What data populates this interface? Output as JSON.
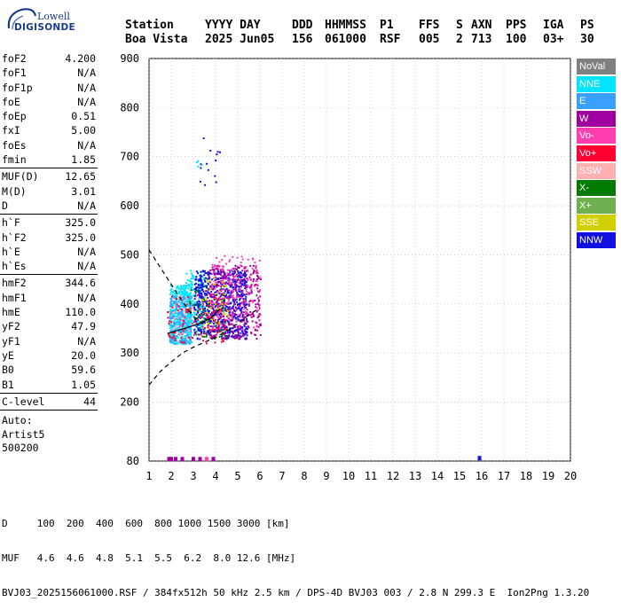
{
  "logo": {
    "line1": "Lowell",
    "line2": "DIGISONDE"
  },
  "header": {
    "row1": [
      "Station",
      "YYYY DAY",
      "DDD",
      "HHMMSS",
      "P1",
      "FFS",
      "S",
      "AXN",
      "PPS",
      "IGA",
      "PS"
    ],
    "row2": [
      "Boa Vista",
      "2025 Jun05",
      "156",
      "061000",
      "RSF",
      "005",
      "2",
      "713",
      "100",
      "03+",
      "30"
    ]
  },
  "params": {
    "group1": [
      {
        "name": "foF2",
        "value": "4.200"
      },
      {
        "name": "foF1",
        "value": "N/A"
      },
      {
        "name": "foF1p",
        "value": "N/A"
      },
      {
        "name": "foE",
        "value": "N/A"
      },
      {
        "name": "foEp",
        "value": "0.51"
      },
      {
        "name": "fxI",
        "value": "5.00"
      },
      {
        "name": "foEs",
        "value": "N/A"
      },
      {
        "name": "fmin",
        "value": "1.85"
      }
    ],
    "group2": [
      {
        "name": "MUF(D)",
        "value": "12.65"
      },
      {
        "name": "M(D)",
        "value": "3.01"
      },
      {
        "name": "D",
        "value": "N/A"
      }
    ],
    "group3": [
      {
        "name": "h`F",
        "value": "325.0"
      },
      {
        "name": "h`F2",
        "value": "325.0"
      },
      {
        "name": "h`E",
        "value": "N/A"
      },
      {
        "name": "h`Es",
        "value": "N/A"
      }
    ],
    "group4": [
      {
        "name": "hmF2",
        "value": "344.6"
      },
      {
        "name": "hmF1",
        "value": "N/A"
      },
      {
        "name": "hmE",
        "value": "110.0"
      },
      {
        "name": "yF2",
        "value": "47.9"
      },
      {
        "name": "yF1",
        "value": "N/A"
      },
      {
        "name": "yE",
        "value": "20.0"
      },
      {
        "name": "B0",
        "value": "59.6"
      },
      {
        "name": "B1",
        "value": "1.05"
      }
    ],
    "group5": [
      {
        "name": "C-level",
        "value": "44"
      }
    ],
    "auto": [
      "Auto:",
      "Artist5",
      "500200"
    ]
  },
  "legend": [
    {
      "label": "NoVal",
      "color": "#808080"
    },
    {
      "label": "NNE",
      "color": "#00e5ff"
    },
    {
      "label": "E",
      "color": "#3aa0ff"
    },
    {
      "label": "W",
      "color": "#a000a0"
    },
    {
      "label": "Vo-",
      "color": "#ff3fb0"
    },
    {
      "label": "Vo+",
      "color": "#ff0030"
    },
    {
      "label": "SSW",
      "color": "#ffb0b0"
    },
    {
      "label": "X-",
      "color": "#007a00"
    },
    {
      "label": "X+",
      "color": "#70b050"
    },
    {
      "label": "SSE",
      "color": "#d0d000"
    },
    {
      "label": "NNW",
      "color": "#1010e0"
    }
  ],
  "footer": {
    "d_row": "D     100  200  400  600  800 1000 1500 3000 [km]",
    "muf_row": "MUF   4.6  4.6  4.8  5.1  5.5  6.2  8.0 12.6 [MHz]",
    "file_row": "BVJ03_2025156061000.RSF / 384fx512h 50 kHz 2.5 km / DPS-4D BVJ03 003 / 2.8 N 299.3 E  Ion2Png 1.3.20"
  },
  "chart_data": {
    "type": "scatter",
    "x": {
      "min": 1,
      "max": 20,
      "ticks": [
        1,
        2,
        3,
        4,
        5,
        6,
        7,
        8,
        9,
        10,
        11,
        12,
        13,
        14,
        15,
        16,
        17,
        18,
        19,
        20
      ],
      "unit": "MHz"
    },
    "y": {
      "min": 80,
      "max": 900,
      "ticks": [
        80,
        200,
        300,
        400,
        500,
        600,
        700,
        800,
        900
      ],
      "unit": "km"
    },
    "grid": true,
    "legend_position": "right",
    "clusters": [
      {
        "class": "NNE",
        "f_min": 1.9,
        "f_max": 2.9,
        "h_min": 320,
        "h_max": 440,
        "n": 420
      },
      {
        "class": "E",
        "f_min": 1.9,
        "f_max": 2.9,
        "h_min": 320,
        "h_max": 420,
        "n": 200
      },
      {
        "class": "NNE",
        "f_min": 2.6,
        "f_max": 3.5,
        "h_min": 350,
        "h_max": 470,
        "n": 150
      },
      {
        "class": "NNW",
        "f_min": 3.0,
        "f_max": 5.4,
        "h_min": 330,
        "h_max": 470,
        "n": 650
      },
      {
        "class": "W",
        "f_min": 3.6,
        "f_max": 6.0,
        "h_min": 330,
        "h_max": 480,
        "n": 380
      },
      {
        "class": "Vo-",
        "f_min": 3.8,
        "f_max": 6.0,
        "h_min": 350,
        "h_max": 500,
        "n": 170
      },
      {
        "class": "Vo+",
        "f_min": 1.8,
        "f_max": 4.5,
        "h_min": 320,
        "h_max": 420,
        "n": 120
      },
      {
        "class": "X-",
        "f_min": 2.8,
        "f_max": 4.5,
        "h_min": 330,
        "h_max": 440,
        "n": 60
      },
      {
        "class": "SSE",
        "f_min": 3.4,
        "f_max": 4.6,
        "h_min": 360,
        "h_max": 460,
        "n": 40
      },
      {
        "class": "SSW",
        "f_min": 2.0,
        "f_max": 3.2,
        "h_min": 330,
        "h_max": 420,
        "n": 40
      },
      {
        "class": "NNW",
        "f_min": 3.2,
        "f_max": 4.2,
        "h_min": 640,
        "h_max": 760,
        "n": 14
      },
      {
        "class": "NNE",
        "f_min": 3.0,
        "f_max": 3.4,
        "h_min": 660,
        "h_max": 700,
        "n": 4
      }
    ],
    "bottom_markers": [
      {
        "f": 1.9,
        "h": 83,
        "class": "W"
      },
      {
        "f": 2.0,
        "h": 83,
        "class": "W"
      },
      {
        "f": 2.2,
        "h": 83,
        "class": "W"
      },
      {
        "f": 2.5,
        "h": 83,
        "class": "W"
      },
      {
        "f": 3.0,
        "h": 83,
        "class": "W"
      },
      {
        "f": 3.3,
        "h": 83,
        "class": "W"
      },
      {
        "f": 3.6,
        "h": 83,
        "class": "Vo-"
      },
      {
        "f": 3.9,
        "h": 83,
        "class": "W"
      },
      {
        "f": 15.9,
        "h": 85,
        "class": "NNW"
      }
    ],
    "profile_curve": [
      [
        1.85,
        340
      ],
      [
        2.2,
        345
      ],
      [
        2.6,
        350
      ],
      [
        3.0,
        356
      ],
      [
        3.4,
        362
      ],
      [
        3.8,
        372
      ],
      [
        4.2,
        390
      ]
    ],
    "profile_upper": [
      [
        1.0,
        510
      ],
      [
        1.5,
        475
      ],
      [
        2.0,
        440
      ],
      [
        2.5,
        405
      ],
      [
        3.0,
        375
      ],
      [
        3.4,
        360
      ]
    ],
    "profile_lower": [
      [
        1.0,
        235
      ],
      [
        1.5,
        262
      ],
      [
        2.0,
        282
      ],
      [
        2.5,
        300
      ],
      [
        3.0,
        312
      ],
      [
        3.5,
        322
      ],
      [
        4.0,
        332
      ],
      [
        4.5,
        345
      ],
      [
        5.0,
        360
      ],
      [
        5.5,
        378
      ],
      [
        6.0,
        392
      ]
    ]
  }
}
